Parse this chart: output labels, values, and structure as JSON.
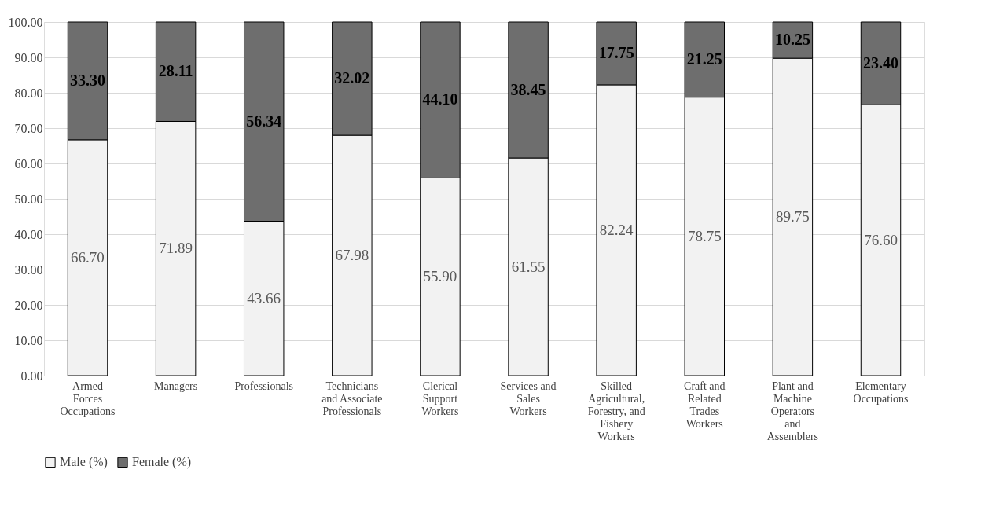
{
  "chart_data": {
    "type": "bar",
    "stacked": true,
    "categories": [
      "Armed\nForces\nOccupations",
      "Managers",
      "Professionals",
      "Technicians\nand Associate\nProfessionals",
      "Clerical\nSupport\nWorkers",
      "Services and\nSales\nWorkers",
      "Skilled\nAgricultural,\nForestry, and\nFishery\nWorkers",
      "Craft and\nRelated\nTrades\nWorkers",
      "Plant and\nMachine\nOperators\nand\nAssemblers",
      "Elementary\nOccupations"
    ],
    "series": [
      {
        "name": "Male (%)",
        "color": "#f2f2f2",
        "values": [
          66.7,
          71.89,
          43.66,
          67.98,
          55.9,
          61.55,
          82.24,
          78.75,
          89.75,
          76.6
        ],
        "value_labels": [
          "66.70",
          "71.89",
          "43.66",
          "67.98",
          "55.90",
          "61.55",
          "82.24",
          "78.75",
          "89.75",
          "76.60"
        ]
      },
      {
        "name": "Female (%)",
        "color": "#6e6e6e",
        "values": [
          33.3,
          28.11,
          56.34,
          32.02,
          44.1,
          38.45,
          17.75,
          21.25,
          10.25,
          23.4
        ],
        "value_labels": [
          "33.30",
          "28.11",
          "56.34",
          "32.02",
          "44.10",
          "38.45",
          "17.75",
          "21.25",
          "10.25",
          "23.40"
        ]
      }
    ],
    "ylim": [
      0,
      100
    ],
    "yticks": [
      {
        "value": 0,
        "label": "0.00"
      },
      {
        "value": 10,
        "label": "10.00"
      },
      {
        "value": 20,
        "label": "20.00"
      },
      {
        "value": 30,
        "label": "30.00"
      },
      {
        "value": 40,
        "label": "40.00"
      },
      {
        "value": 50,
        "label": "50.00"
      },
      {
        "value": 60,
        "label": "60.00"
      },
      {
        "value": 70,
        "label": "70.00"
      },
      {
        "value": 80,
        "label": "80.00"
      },
      {
        "value": 90,
        "label": "90.00"
      },
      {
        "value": 100,
        "label": "100.00"
      }
    ],
    "grid": "y",
    "legend": "bottom"
  }
}
